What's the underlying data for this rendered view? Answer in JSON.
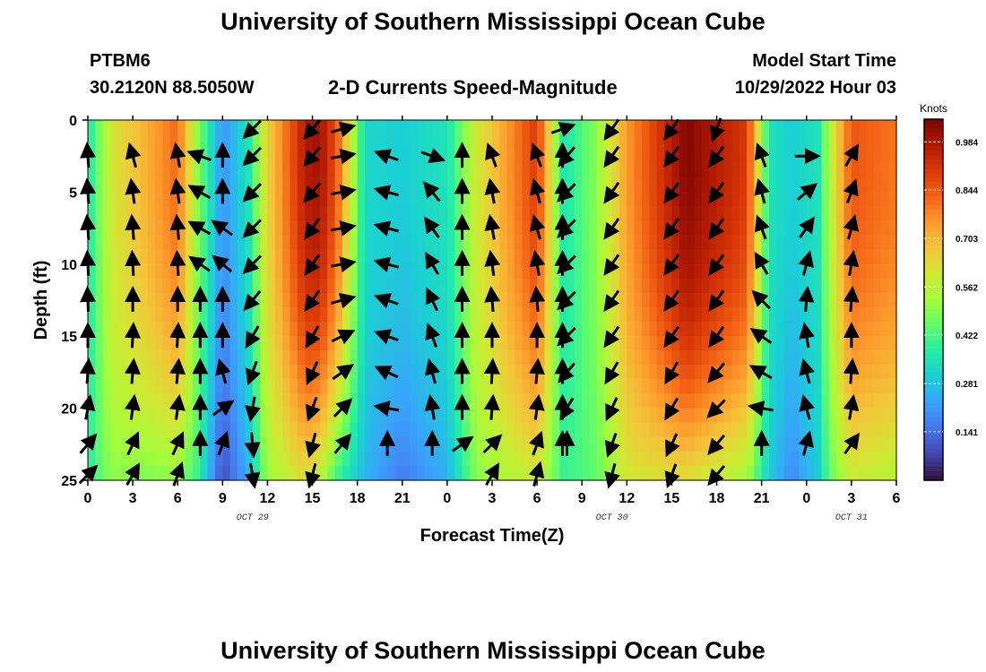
{
  "page": {
    "title": "University of Southern Mississippi Ocean Cube",
    "station_id": "PTBM6",
    "station_coords": "30.2120N  88.5050W",
    "plot_title": "2-D Currents Speed-Magnitude",
    "model_start_label": "Model Start Time",
    "model_start_value": "10/29/2022 Hour 03",
    "footer_title": "University of Southern Mississippi Ocean Cube"
  },
  "chart_data": {
    "type": "heatmap",
    "title": "2-D Currents Speed-Magnitude",
    "xlabel": "Forecast Time(Z)",
    "ylabel": "Depth (ft)",
    "x_tick_labels": [
      "0",
      "3",
      "6",
      "9",
      "12",
      "15",
      "18",
      "21",
      "0",
      "3",
      "6",
      "9",
      "12",
      "15",
      "18",
      "21",
      "0",
      "3",
      "6"
    ],
    "x_hours_from_start": [
      0,
      3,
      6,
      9,
      12,
      15,
      18,
      21,
      24,
      27,
      30,
      33,
      36,
      39,
      42,
      45,
      48,
      51,
      54
    ],
    "date_labels": [
      {
        "label": "OCT 29",
        "at_hour": 11
      },
      {
        "label": "OCT 30",
        "at_hour": 35
      },
      {
        "label": "OCT 31",
        "at_hour": 51
      }
    ],
    "y_ticks": [
      0,
      5,
      10,
      15,
      20,
      25
    ],
    "ylim": [
      0,
      25
    ],
    "y_inverted": true,
    "colorbar": {
      "title": "Knots",
      "tick_labels": [
        "0.984",
        "0.844",
        "0.703",
        "0.562",
        "0.422",
        "0.281",
        "0.141"
      ],
      "tick_values": [
        0.984,
        0.844,
        0.703,
        0.562,
        0.422,
        0.281,
        0.141
      ],
      "range": [
        0,
        1.05
      ],
      "colors": [
        "#30123b",
        "#4145ab",
        "#4675ed",
        "#39a2fc",
        "#1bcfd4",
        "#24eca6",
        "#61fc6c",
        "#a4fc3b",
        "#d1e834",
        "#f3c63a",
        "#fe9b2d",
        "#f36315",
        "#d93806",
        "#b11901",
        "#7a0403"
      ]
    },
    "speed_profile": {
      "hours": [
        0,
        1.5,
        4,
        6,
        7.3,
        9,
        10.7,
        12,
        14.5,
        15.5,
        16.6,
        18.5,
        21,
        24,
        26,
        30,
        31.8,
        34,
        36,
        40,
        44,
        45.5,
        47,
        48.8,
        49.5,
        51,
        54
      ],
      "surface": [
        0.35,
        0.6,
        0.72,
        0.82,
        0.5,
        0.2,
        0.35,
        0.65,
        0.97,
        1.0,
        0.85,
        0.32,
        0.3,
        0.35,
        0.6,
        0.9,
        0.35,
        0.5,
        0.75,
        1.04,
        0.9,
        0.35,
        0.3,
        0.35,
        0.55,
        0.85,
        0.8
      ],
      "bottom": [
        0.38,
        0.5,
        0.48,
        0.5,
        0.4,
        0.08,
        0.25,
        0.52,
        0.62,
        0.55,
        0.4,
        0.25,
        0.16,
        0.25,
        0.5,
        0.58,
        0.4,
        0.45,
        0.6,
        0.62,
        0.52,
        0.3,
        0.18,
        0.3,
        0.45,
        0.58,
        0.55
      ]
    },
    "vectors": {
      "depths": [
        0,
        2.5,
        5,
        7.5,
        10,
        12.5,
        15,
        17.5,
        20,
        22.5,
        25
      ],
      "columns": [
        {
          "hour": 0,
          "dir": [
            0,
            -4,
            -4,
            -4,
            -3,
            -2,
            0,
            4,
            10,
            40,
            45
          ]
        },
        {
          "hour": 3,
          "dir": [
            0,
            -15,
            -8,
            -5,
            -3,
            0,
            3,
            5,
            8,
            25,
            30
          ]
        },
        {
          "hour": 6,
          "dir": [
            0,
            -10,
            -8,
            -5,
            -3,
            0,
            3,
            5,
            8,
            25,
            20
          ]
        },
        {
          "hour": 7.5,
          "dir": [
            0,
            -70,
            -60,
            -60,
            -55,
            0,
            0,
            0,
            0,
            0,
            0
          ]
        },
        {
          "hour": 9,
          "dir": [
            0,
            0,
            0,
            -55,
            -50,
            0,
            0,
            -15,
            55,
            20,
            0
          ]
        },
        {
          "hour": 11,
          "dir": [
            -135,
            -135,
            -135,
            -135,
            -135,
            -140,
            -150,
            -160,
            -170,
            175,
            170
          ]
        },
        {
          "hour": 15,
          "dir": [
            -140,
            -140,
            -140,
            -145,
            -145,
            -145,
            -150,
            -155,
            -160,
            -165,
            -165
          ]
        },
        {
          "hour": 17,
          "dir": [
            75,
            80,
            80,
            80,
            80,
            75,
            65,
            55,
            45,
            40,
            0
          ]
        },
        {
          "hour": 20,
          "dir": [
            0,
            -70,
            -75,
            -75,
            -75,
            -70,
            -70,
            -65,
            -80,
            0,
            0
          ]
        },
        {
          "hour": 23,
          "dir": [
            0,
            110,
            -40,
            -35,
            -30,
            -25,
            -20,
            -15,
            -10,
            0,
            0
          ]
        },
        {
          "hour": 25,
          "dir": [
            0,
            0,
            0,
            0,
            0,
            0,
            0,
            0,
            0,
            55,
            0
          ]
        },
        {
          "hour": 27,
          "dir": [
            0,
            -20,
            -10,
            -10,
            -8,
            -5,
            0,
            3,
            5,
            45,
            30
          ]
        },
        {
          "hour": 30,
          "dir": [
            0,
            -20,
            -15,
            -15,
            -10,
            -5,
            0,
            5,
            8,
            20,
            15
          ]
        },
        {
          "hour": 31.7,
          "dir": [
            70,
            0,
            0,
            0,
            0,
            0,
            0,
            0,
            0,
            0,
            0
          ]
        },
        {
          "hour": 32,
          "dir": [
            0,
            -140,
            -135,
            -135,
            -135,
            -135,
            -135,
            -140,
            -150,
            0,
            0
          ]
        },
        {
          "hour": 35,
          "dir": [
            -145,
            -145,
            -145,
            -145,
            -145,
            -145,
            -145,
            -150,
            -155,
            -160,
            -165
          ]
        },
        {
          "hour": 39,
          "dir": [
            -145,
            -145,
            -145,
            -145,
            -145,
            -145,
            -145,
            -150,
            -150,
            -155,
            -160
          ]
        },
        {
          "hour": 42,
          "dir": [
            -160,
            -145,
            -145,
            -145,
            -145,
            -145,
            -145,
            -140,
            -135,
            -140,
            -140
          ]
        },
        {
          "hour": 45,
          "dir": [
            0,
            -20,
            -15,
            -20,
            -30,
            -45,
            -55,
            -60,
            -80,
            0,
            0
          ]
        },
        {
          "hour": 48,
          "dir": [
            0,
            90,
            50,
            35,
            15,
            5,
            -10,
            -15,
            -15,
            15,
            0
          ]
        },
        {
          "hour": 51,
          "dir": [
            0,
            30,
            20,
            15,
            10,
            5,
            0,
            5,
            10,
            35,
            0
          ]
        }
      ]
    }
  }
}
